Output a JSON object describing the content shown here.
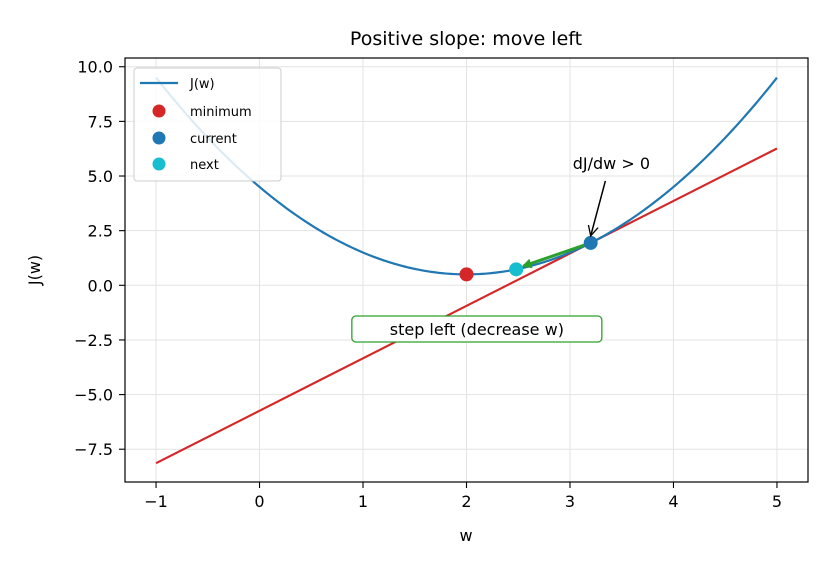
{
  "chart_data": {
    "type": "line",
    "title": "Positive slope: move left",
    "xlabel": "w",
    "ylabel": "J(w)",
    "xlim": [
      -1.3,
      5.3
    ],
    "ylim": [
      -9.0,
      10.4
    ],
    "xticks": [
      -1,
      0,
      1,
      2,
      3,
      4,
      5
    ],
    "xtick_labels": [
      "−1",
      "0",
      "1",
      "2",
      "3",
      "4",
      "5"
    ],
    "yticks": [
      -7.5,
      -5.0,
      -2.5,
      0.0,
      2.5,
      5.0,
      7.5,
      10.0
    ],
    "ytick_labels": [
      "−7.5",
      "−5.0",
      "−2.5",
      "0.0",
      "2.5",
      "5.0",
      "7.5",
      "10.0"
    ],
    "grid": true,
    "legend_position": "top-left",
    "curve": {
      "name": "J(w)",
      "function": "(w-2)^2 + 0.5",
      "x_range": [
        -1,
        5
      ],
      "color": "#1f77b4"
    },
    "tangent": {
      "slope": 2.4,
      "intercept": -5.74,
      "x_range": [
        -1,
        5
      ],
      "color": "#d62728"
    },
    "points": [
      {
        "name": "minimum",
        "x": 2.0,
        "y": 0.5,
        "color": "#d62728"
      },
      {
        "name": "current",
        "x": 3.2,
        "y": 1.94,
        "color": "#1f77b4"
      },
      {
        "name": "next",
        "x": 2.48,
        "y": 0.73,
        "color": "#17becf"
      }
    ],
    "step_arrow": {
      "from": [
        3.2,
        1.94
      ],
      "to": [
        2.55,
        0.88
      ],
      "color": "#2ca02c"
    },
    "annotations": {
      "derivative": {
        "text": "dJ/dw > 0",
        "x": 3.4,
        "y": 5.6,
        "arrow_to": [
          3.2,
          1.94
        ]
      },
      "step_box": {
        "text": "step left (decrease w)",
        "x": 2.1,
        "y": -2.0,
        "border_color": "#2ca02c"
      }
    }
  }
}
